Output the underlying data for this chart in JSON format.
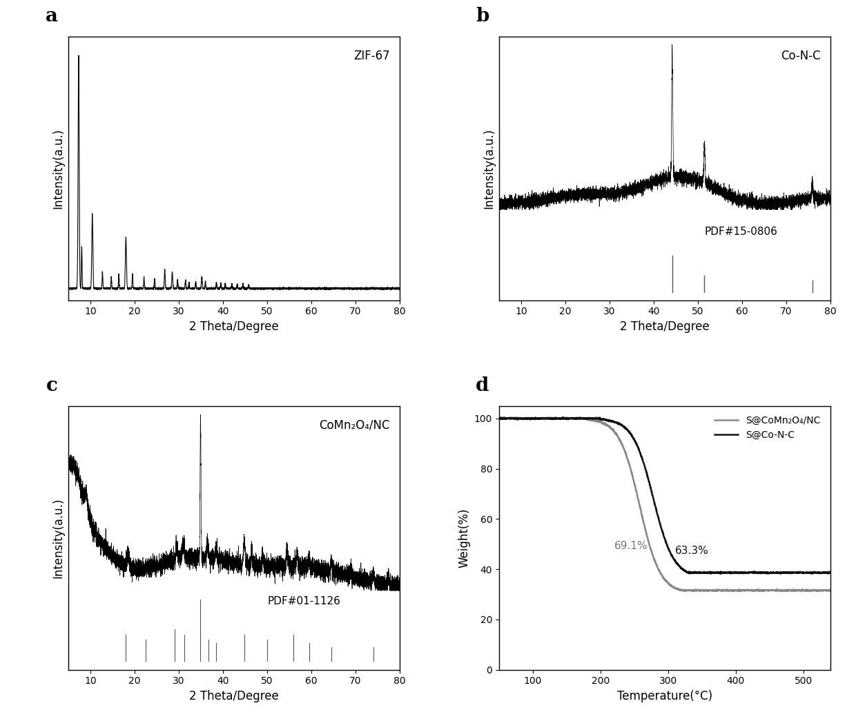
{
  "panel_a_label": "a",
  "panel_b_label": "b",
  "panel_c_label": "c",
  "panel_d_label": "d",
  "panel_a_annotation": "ZIF-67",
  "panel_b_annotation": "Co-N-C",
  "panel_c_annotation": "CoMn₂O₄/NC",
  "panel_b_pdf": "PDF#15-0806",
  "panel_c_pdf": "PDF#01-1126",
  "xrd_xlim": [
    5,
    80
  ],
  "xrd_xlabel": "2 Theta/Degree",
  "xrd_ylabel": "Intensity(a.u.)",
  "panel_d_xlabel": "Temperature(°C)",
  "panel_d_ylabel": "Weight(%)",
  "panel_d_legend1": "S@CoMn₂O₄/NC",
  "panel_d_legend2": "S@Co-N-C",
  "panel_d_annotation1": "69.1%",
  "panel_d_annotation2": "63.3%",
  "panel_d_xlim": [
    50,
    540
  ],
  "panel_d_ylim": [
    0,
    105
  ],
  "background_color": "#ffffff",
  "line_color": "#000000"
}
